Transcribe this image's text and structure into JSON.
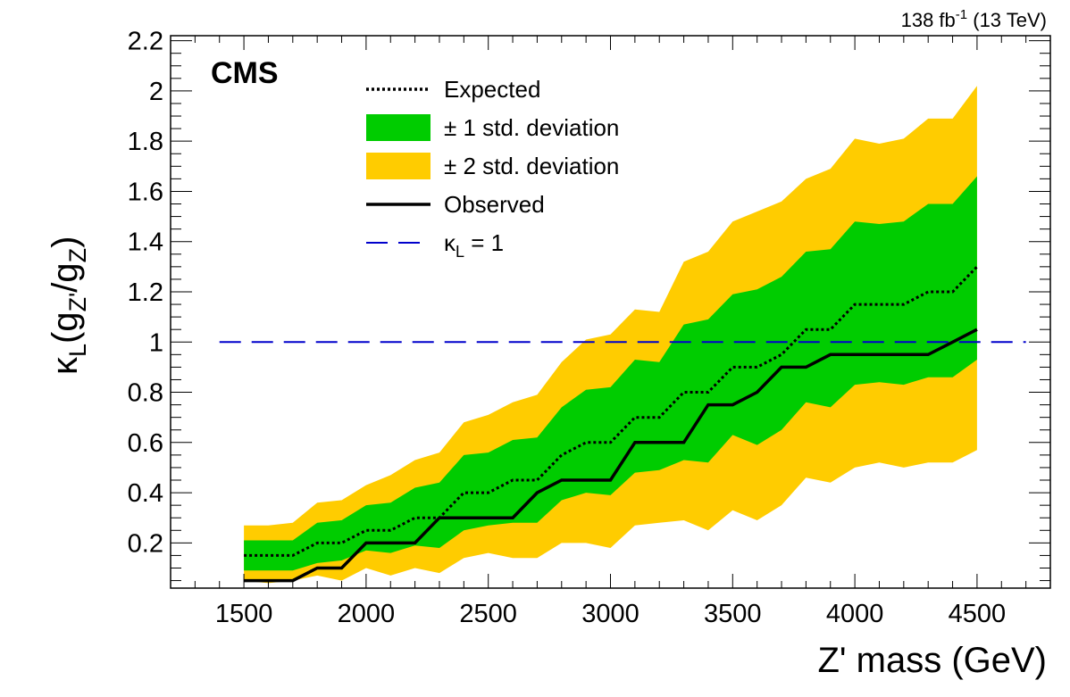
{
  "chart_data": {
    "type": "line",
    "experiment_label": "CMS",
    "lumi": {
      "value": "138 fb",
      "exp": "-1",
      "energy": "(13 TeV)"
    },
    "xlabel": "Z' mass (GeV)",
    "ylabel": {
      "kappa": "κ",
      "kappa_sub": "L",
      "open": "(g",
      "gzp_sub": "Z'",
      "slash": "/g",
      "gz_sub": "Z",
      "close": ")"
    },
    "xlim": [
      1200,
      4800
    ],
    "ylim": [
      0.02,
      2.22
    ],
    "x_ticks": [
      1500,
      2000,
      2500,
      3000,
      3500,
      4000,
      4500
    ],
    "y_ticks": [
      0.2,
      0.4,
      0.6,
      0.8,
      1,
      1.2,
      1.4,
      1.6,
      1.8,
      2,
      2.2
    ],
    "x_tick_labels": [
      "1500",
      "2000",
      "2500",
      "3000",
      "3500",
      "4000",
      "4500"
    ],
    "y_tick_labels": [
      "0.2",
      "0.4",
      "0.6",
      "0.8",
      "1",
      "1.2",
      "1.4",
      "1.6",
      "1.8",
      "2",
      "2.2"
    ],
    "x": [
      1500,
      1600,
      1700,
      1800,
      1900,
      2000,
      2100,
      2200,
      2300,
      2400,
      2500,
      2600,
      2700,
      2800,
      2900,
      3000,
      3100,
      3200,
      3300,
      3400,
      3500,
      3600,
      3700,
      3800,
      3900,
      4000,
      4100,
      4200,
      4300,
      4400,
      4500
    ],
    "series": [
      {
        "name": "± 2 std. deviation",
        "kind": "band",
        "color": "#ffcc00",
        "low": [
          0.05,
          0.04,
          0.05,
          0.07,
          0.05,
          0.1,
          0.07,
          0.1,
          0.08,
          0.14,
          0.16,
          0.14,
          0.14,
          0.2,
          0.2,
          0.18,
          0.27,
          0.28,
          0.29,
          0.25,
          0.33,
          0.29,
          0.35,
          0.46,
          0.44,
          0.5,
          0.52,
          0.5,
          0.52,
          0.52,
          0.57
        ],
        "high": [
          0.27,
          0.27,
          0.28,
          0.36,
          0.37,
          0.43,
          0.47,
          0.53,
          0.56,
          0.68,
          0.71,
          0.76,
          0.79,
          0.92,
          1.01,
          1.03,
          1.13,
          1.12,
          1.32,
          1.36,
          1.48,
          1.52,
          1.56,
          1.65,
          1.69,
          1.81,
          1.79,
          1.81,
          1.89,
          1.89,
          2.02
        ]
      },
      {
        "name": "± 1 std. deviation",
        "kind": "band",
        "color": "#00cc00",
        "low": [
          0.09,
          0.09,
          0.09,
          0.12,
          0.13,
          0.17,
          0.16,
          0.19,
          0.18,
          0.25,
          0.27,
          0.28,
          0.28,
          0.37,
          0.4,
          0.39,
          0.48,
          0.49,
          0.53,
          0.52,
          0.63,
          0.59,
          0.65,
          0.76,
          0.74,
          0.83,
          0.84,
          0.83,
          0.86,
          0.86,
          0.93
        ],
        "high": [
          0.21,
          0.21,
          0.21,
          0.28,
          0.29,
          0.35,
          0.36,
          0.42,
          0.44,
          0.55,
          0.56,
          0.61,
          0.62,
          0.74,
          0.81,
          0.82,
          0.93,
          0.92,
          1.07,
          1.09,
          1.19,
          1.21,
          1.26,
          1.36,
          1.37,
          1.48,
          1.47,
          1.48,
          1.55,
          1.55,
          1.66
        ]
      },
      {
        "name": "Expected",
        "kind": "step",
        "style": "dotted",
        "color": "#000000",
        "values": [
          0.15,
          0.15,
          0.15,
          0.2,
          0.2,
          0.25,
          0.25,
          0.3,
          0.3,
          0.4,
          0.4,
          0.45,
          0.45,
          0.55,
          0.6,
          0.6,
          0.7,
          0.7,
          0.8,
          0.8,
          0.9,
          0.9,
          0.95,
          1.05,
          1.05,
          1.15,
          1.15,
          1.15,
          1.2,
          1.2,
          1.3
        ]
      },
      {
        "name": "Observed",
        "kind": "step",
        "style": "solid",
        "color": "#000000",
        "values": [
          0.05,
          0.05,
          0.05,
          0.1,
          0.1,
          0.2,
          0.2,
          0.2,
          0.3,
          0.3,
          0.3,
          0.3,
          0.4,
          0.45,
          0.45,
          0.45,
          0.6,
          0.6,
          0.6,
          0.75,
          0.75,
          0.8,
          0.9,
          0.9,
          0.95,
          0.95,
          0.95,
          0.95,
          0.95,
          1.0,
          1.05
        ]
      }
    ],
    "reference_line": {
      "y": 1,
      "x_from": 1400,
      "x_to": 4700,
      "color": "#0000cc",
      "style": "dashed"
    },
    "legend": {
      "placement": "top-center",
      "items": [
        {
          "label": "Expected",
          "symbol": "dotted-line",
          "color": "#000000"
        },
        {
          "label": "± 1 std. deviation",
          "symbol": "box",
          "color": "#00cc00"
        },
        {
          "label": "± 2 std. deviation",
          "symbol": "box",
          "color": "#ffcc00"
        },
        {
          "label": "Observed",
          "symbol": "solid-line",
          "color": "#000000"
        },
        {
          "label": "κ",
          "sub": "L",
          "suffix": " = 1",
          "symbol": "dashed-line",
          "color": "#0000cc"
        }
      ]
    },
    "grid": false
  }
}
